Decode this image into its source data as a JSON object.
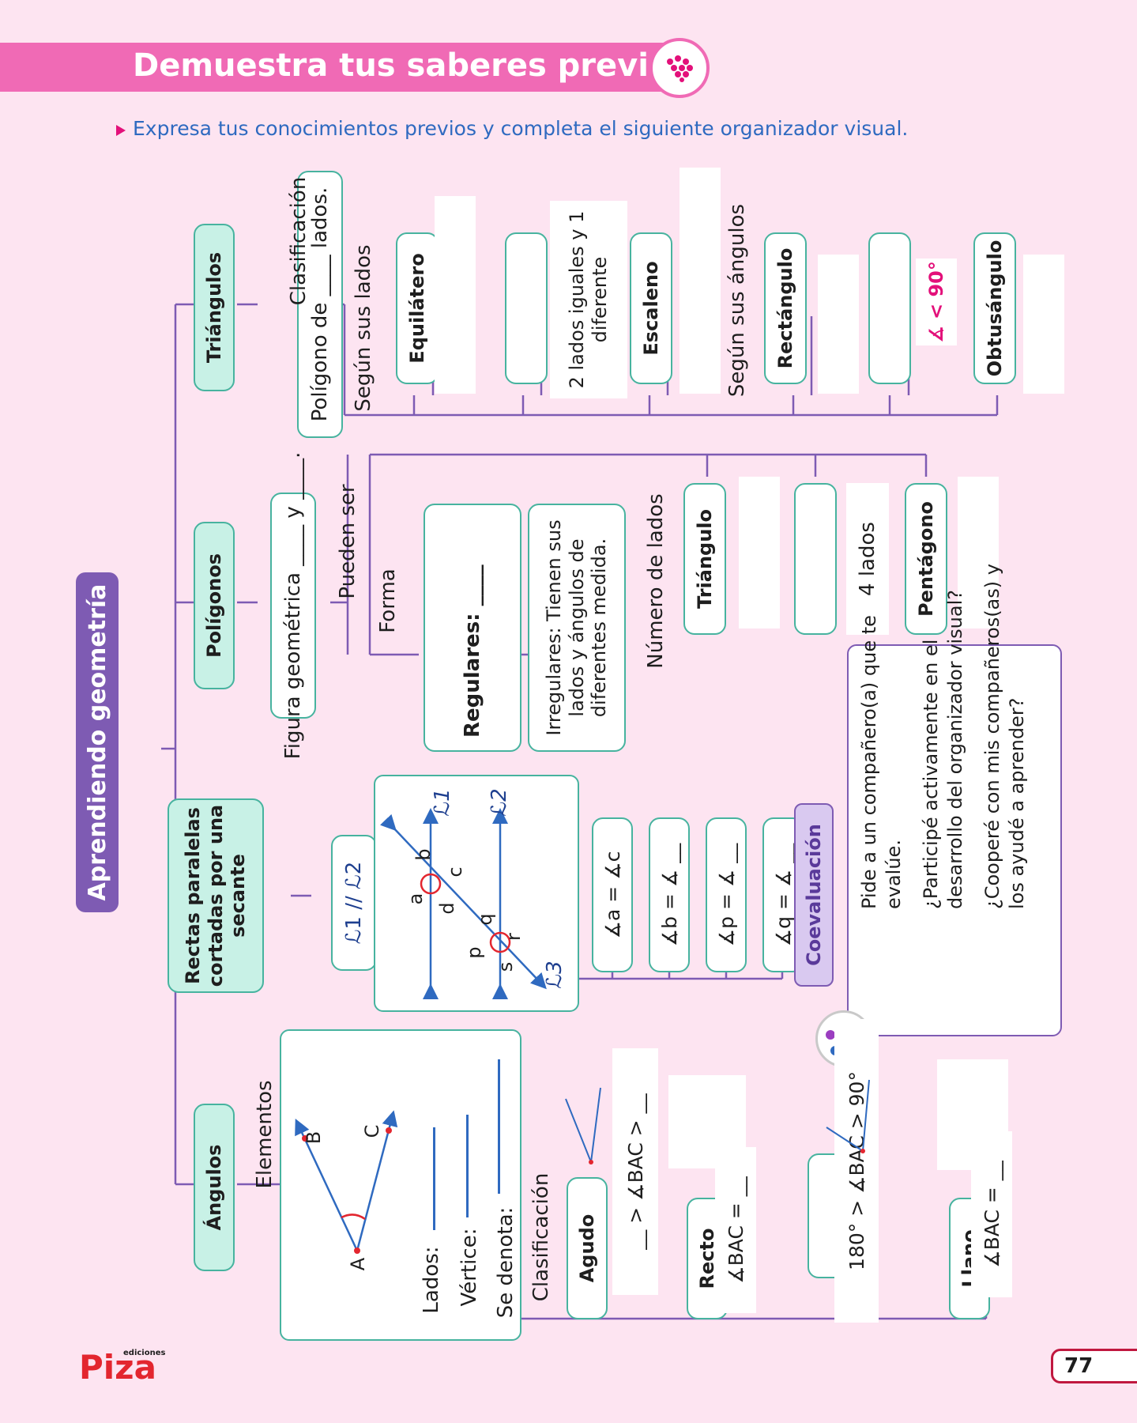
{
  "header": {
    "title": "Demuestra tus saberes previos"
  },
  "instruction": "Expresa tus conocimientos previos y completa el siguiente organizador visual.",
  "main_node": "Aprendiendo geometría",
  "triangulos": {
    "node": "Triángulos",
    "def": "Polígono de ____ lados.",
    "clasificacion": "Clasificación",
    "segun_lados": "Según sus lados",
    "equilatero": "Equilátero",
    "dos_lados": "2 lados iguales y 1 diferente",
    "escaleno": "Escaleno",
    "segun_angulos": "Según sus ángulos",
    "rectangulo": "Rectángulo",
    "menor90": "∡ < 90°",
    "obtusangulo": "Obtusángulo"
  },
  "poligonos": {
    "node": "Polígonos",
    "def": "Figura geométrica ____ y ____.",
    "pueden_ser": "Pueden ser",
    "forma": "Forma",
    "regulares": "Regulares: ____",
    "irregulares": "Irregulares: Tienen sus lados y ángulos de diferentes medida.",
    "numero_lados": "Número de lados",
    "triangulo": "Triángulo",
    "cuatro_lados": "4 lados",
    "pentagono": "Pentágono"
  },
  "rectas": {
    "node": "Rectas paralelas cortadas por una secante",
    "parallel": "ℒ1 // ℒ2",
    "l1": "ℒ1",
    "l2": "ℒ2",
    "l3": "ℒ3",
    "letters": [
      "a",
      "b",
      "c",
      "d",
      "p",
      "q",
      "r",
      "s"
    ],
    "eq1": "∡a = ∡c",
    "eq2": "∡b = ∡ __",
    "eq3": "∡p = ∡ __",
    "eq4": "∡q = ∡ __"
  },
  "angulos": {
    "node": "Ángulos",
    "elementos": "Elementos",
    "pt_a": "A",
    "pt_b": "B",
    "pt_c": "C",
    "lados": "Lados:",
    "vertice": "Vértice:",
    "denota": "Se denota:",
    "clasificacion": "Clasificación",
    "agudo": "Agudo",
    "agudo_rel": "__ > ∡BAC > __",
    "recto": "Recto",
    "recto_rel": "∡BAC = __",
    "obtuso_rel": "180° > ∡BAC > 90°",
    "llano": "Llano",
    "llano_rel": "∡BAC = __"
  },
  "coevaluacion": {
    "title": "Coevaluación",
    "p1": "Pide a un compañero(a) que te evalúe.",
    "p2": "¿Participé activamente en el desarrollo del organizador visual?",
    "p3": "¿Cooperé con mis compañeros(as) y los ayudé a aprender?"
  },
  "footer": {
    "logo": "Piza",
    "logo_small": "ediciones",
    "page": "77"
  }
}
